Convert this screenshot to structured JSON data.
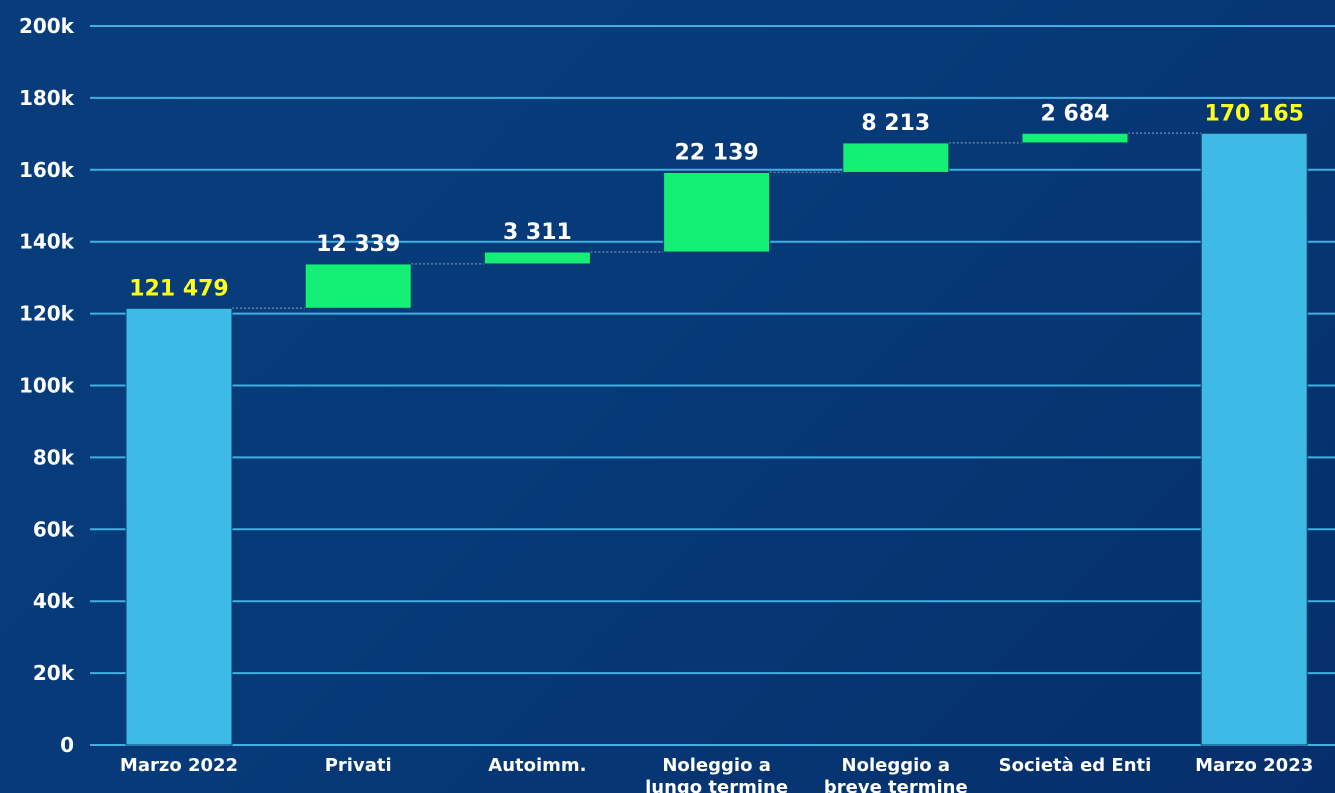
{
  "chart_data": {
    "type": "bar",
    "subtype": "waterfall",
    "categories": [
      "Marzo 2022",
      "Privati",
      "Autoimm.",
      "Noleggio a lungo termine",
      "Noleggio a breve termine",
      "Società ed Enti",
      "Marzo 2023"
    ],
    "category_lines": [
      [
        "Marzo 2022"
      ],
      [
        "Privati"
      ],
      [
        "Autoimm."
      ],
      [
        "Noleggio a",
        "lungo termine"
      ],
      [
        "Noleggio a",
        "breve termine"
      ],
      [
        "Società ed Enti"
      ],
      [
        "Marzo 2023"
      ]
    ],
    "kinds": [
      "total",
      "increase",
      "increase",
      "increase",
      "increase",
      "increase",
      "total"
    ],
    "values": [
      121479,
      12339,
      3311,
      22139,
      8213,
      2684,
      170165
    ],
    "value_labels": [
      "121 479",
      "12 339",
      "3 311",
      "22 139",
      "8 213",
      "2 684",
      "170 165"
    ],
    "ylim": [
      0,
      200000
    ],
    "yticks": [
      0,
      20000,
      40000,
      60000,
      80000,
      100000,
      120000,
      140000,
      160000,
      180000,
      200000
    ],
    "ytick_labels": [
      "0",
      "20k",
      "40k",
      "60k",
      "80k",
      "100k",
      "120k",
      "140k",
      "160k",
      "180k",
      "200k"
    ],
    "title": "",
    "xlabel": "",
    "ylabel": "",
    "grid": true,
    "colors": {
      "total": "#3dbbe6",
      "increase": "#14ef75",
      "grid": "#3fb0e0",
      "total_label": "#ffff1a",
      "increase_label": "#ffffff",
      "axis_text": "#ffffff",
      "connector": "#5b7fa8"
    }
  }
}
